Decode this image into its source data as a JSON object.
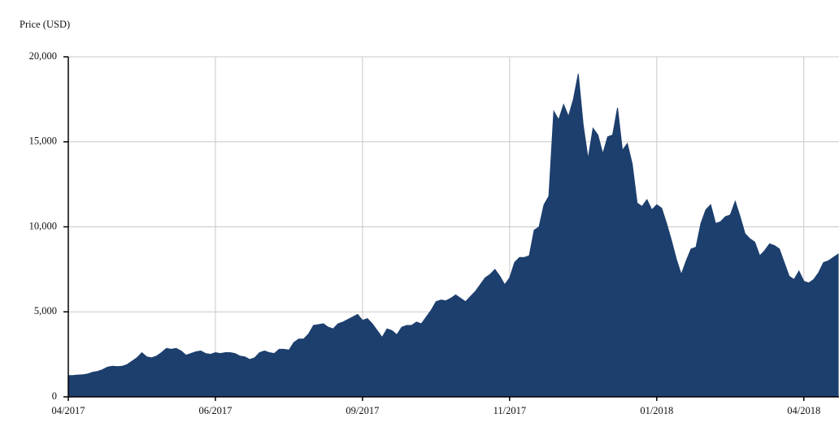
{
  "chart_data": {
    "type": "area",
    "y_axis_title": "Price (USD)",
    "color": "#1d3f6e",
    "grid": true,
    "xgrid": true,
    "ylim": [
      0,
      20000
    ],
    "yticks": [
      0,
      {
        "value": 5000,
        "label": "5,000"
      },
      {
        "value": 10000,
        "label": "10,000"
      },
      {
        "value": 15000,
        "label": "15,000"
      },
      {
        "value": 20000,
        "label": "20,000"
      }
    ],
    "categories": [
      "04/2017",
      null,
      null,
      null,
      null,
      null,
      null,
      null,
      null,
      null,
      null,
      null,
      null,
      null,
      null,
      null,
      null,
      null,
      null,
      null,
      null,
      null,
      null,
      null,
      null,
      null,
      null,
      null,
      null,
      null,
      "06/2017",
      null,
      null,
      null,
      null,
      null,
      null,
      null,
      null,
      null,
      null,
      null,
      null,
      null,
      null,
      null,
      null,
      null,
      null,
      null,
      null,
      null,
      null,
      null,
      null,
      null,
      null,
      null,
      null,
      null,
      "09/2017",
      null,
      null,
      null,
      null,
      null,
      null,
      null,
      null,
      null,
      null,
      null,
      null,
      null,
      null,
      null,
      null,
      null,
      null,
      null,
      null,
      null,
      null,
      null,
      null,
      null,
      null,
      null,
      null,
      null,
      "11/2017",
      null,
      null,
      null,
      null,
      null,
      null,
      null,
      null,
      null,
      null,
      null,
      null,
      null,
      null,
      null,
      null,
      null,
      null,
      null,
      null,
      null,
      null,
      null,
      null,
      null,
      null,
      null,
      null,
      null,
      "01/2018",
      null,
      null,
      null,
      null,
      null,
      null,
      null,
      null,
      null,
      null,
      null,
      null,
      null,
      null,
      null,
      null,
      null,
      null,
      null,
      null,
      null,
      null,
      null,
      null,
      null,
      null,
      null,
      null,
      null,
      "04/2018",
      null,
      null,
      null,
      null,
      null,
      null,
      null
    ],
    "values": [
      1250,
      1260,
      1280,
      1300,
      1350,
      1450,
      1500,
      1600,
      1750,
      1800,
      1780,
      1800,
      1900,
      2100,
      2300,
      2600,
      2350,
      2300,
      2400,
      2600,
      2850,
      2800,
      2850,
      2700,
      2450,
      2550,
      2650,
      2700,
      2550,
      2500,
      2600,
      2550,
      2600,
      2600,
      2550,
      2400,
      2350,
      2200,
      2300,
      2600,
      2700,
      2600,
      2550,
      2800,
      2800,
      2750,
      3200,
      3400,
      3400,
      3700,
      4200,
      4250,
      4300,
      4100,
      4000,
      4300,
      4400,
      4550,
      4700,
      4850,
      4500,
      4600,
      4300,
      3900,
      3500,
      4000,
      3900,
      3650,
      4100,
      4200,
      4200,
      4400,
      4300,
      4700,
      5100,
      5600,
      5700,
      5650,
      5800,
      6000,
      5800,
      5600,
      5900,
      6200,
      6600,
      7000,
      7200,
      7500,
      7100,
      6600,
      7000,
      7900,
      8200,
      8200,
      8300,
      9800,
      10000,
      11300,
      11800,
      16800,
      16300,
      17200,
      16500,
      17500,
      19000,
      16000,
      14000,
      15800,
      15400,
      14300,
      15300,
      15400,
      17000,
      14500,
      14900,
      13700,
      11400,
      11200,
      11600,
      11000,
      11300,
      11100,
      10200,
      9200,
      8100,
      7200,
      8000,
      8700,
      8800,
      10200,
      11000,
      11300,
      10200,
      10300,
      10600,
      10700,
      11500,
      10600,
      9600,
      9300,
      9100,
      8300,
      8600,
      9000,
      8900,
      8700,
      7900,
      7100,
      6900,
      7400,
      6800,
      6700,
      6900,
      7300,
      7900,
      8000,
      8200,
      8400
    ]
  }
}
